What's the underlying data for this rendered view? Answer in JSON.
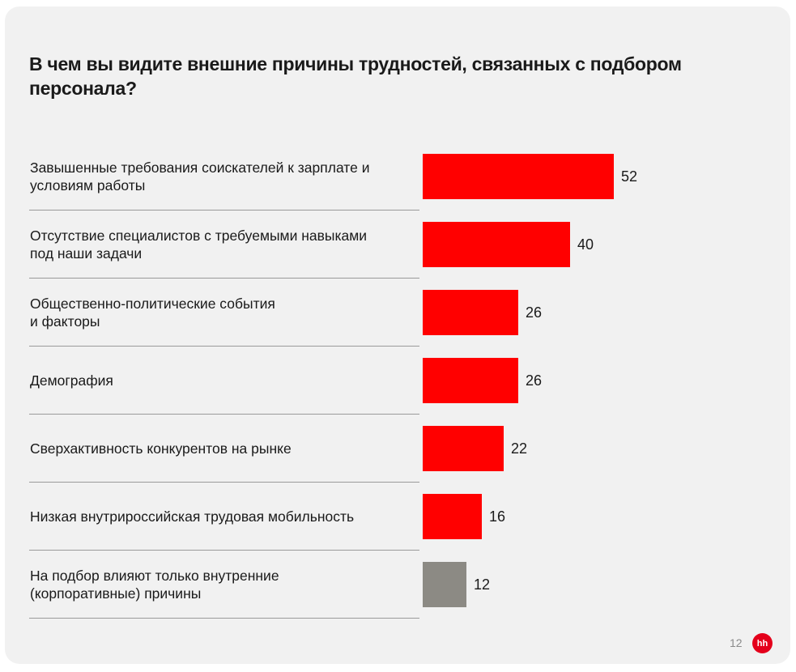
{
  "page": {
    "title": "В чем вы видите внешние причины трудностей, связанных с подбором персонала?",
    "page_number": "12",
    "logo_text": "hh"
  },
  "colors": {
    "primary_bar": "#ff0000",
    "secondary_bar": "#8c8a84",
    "background": "#f1f1f1"
  },
  "chart_data": {
    "type": "bar",
    "orientation": "horizontal",
    "title": "В чем вы видите внешние причины трудностей, связанных с подбором персонала?",
    "categories": [
      "Завышенные требования соискателей к зарплате и\nусловиям работы",
      "Отсутствие специалистов с требуемыми навыками\nпод наши задачи",
      "Общественно-политические события\nи факторы",
      "Демография",
      "Сверхактивность конкурентов на рынке",
      "Низкая внутрироссийская трудовая мобильность",
      "На подбор влияют только внутренние\n(корпоративные) причины"
    ],
    "values": [
      52,
      40,
      26,
      26,
      22,
      16,
      12
    ],
    "bar_colors": [
      "red",
      "red",
      "red",
      "red",
      "red",
      "red",
      "gray"
    ],
    "xlim": [
      0,
      52
    ],
    "grid": false,
    "legend": "none"
  }
}
